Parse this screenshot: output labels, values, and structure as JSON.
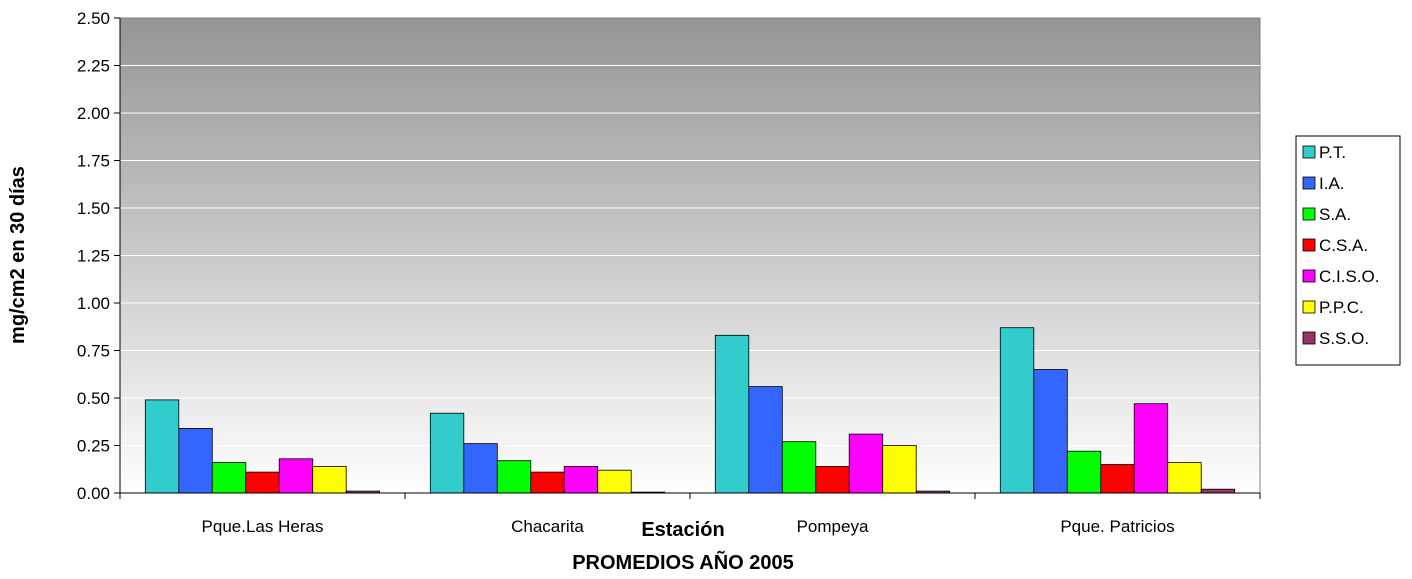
{
  "chart_data": {
    "type": "bar",
    "title": "PROMEDIOS AÑO 2005",
    "xlabel": "Estación",
    "ylabel": "mg/cm2 en 30 días",
    "ylim": [
      0,
      2.5
    ],
    "yticks": [
      "0.00",
      "0.25",
      "0.50",
      "0.75",
      "1.00",
      "1.25",
      "1.50",
      "1.75",
      "2.00",
      "2.25",
      "2.50"
    ],
    "grid": true,
    "legend_position": "right",
    "categories": [
      "Pque.Las Heras",
      "Chacarita",
      "Pompeya",
      "Pque. Patricios"
    ],
    "series": [
      {
        "name": "P.T.",
        "color": "#33CCCC",
        "values": [
          0.49,
          0.42,
          0.83,
          0.87
        ]
      },
      {
        "name": "I.A.",
        "color": "#3366FF",
        "values": [
          0.34,
          0.26,
          0.56,
          0.65
        ]
      },
      {
        "name": "S.A.",
        "color": "#00FF00",
        "values": [
          0.16,
          0.17,
          0.27,
          0.22
        ]
      },
      {
        "name": "C.S.A.",
        "color": "#FF0000",
        "values": [
          0.11,
          0.11,
          0.14,
          0.15
        ]
      },
      {
        "name": "C.I.S.O.",
        "color": "#FF00FF",
        "values": [
          0.18,
          0.14,
          0.31,
          0.47
        ]
      },
      {
        "name": "P.P.C.",
        "color": "#FFFF00",
        "values": [
          0.14,
          0.12,
          0.25,
          0.16
        ]
      },
      {
        "name": "S.S.O.",
        "color": "#993366",
        "values": [
          0.01,
          0.005,
          0.01,
          0.02
        ]
      }
    ]
  }
}
